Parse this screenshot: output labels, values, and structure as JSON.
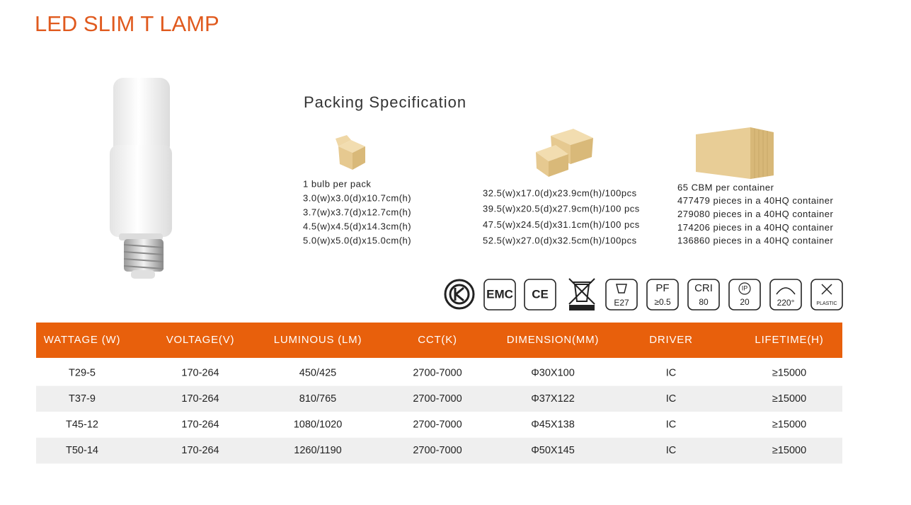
{
  "header": {
    "title": "LED SLIM T LAMP"
  },
  "packing": {
    "title": "Packing Specification",
    "columns": [
      {
        "lines": [
          "1 bulb per pack",
          "3.0(w)x3.0(d)x10.7cm(h)",
          "3.7(w)x3.7(d)x12.7cm(h)",
          "4.5(w)x4.5(d)x14.3cm(h)",
          "5.0(w)x5.0(d)x15.0cm(h)"
        ]
      },
      {
        "lines": [
          "32.5(w)x17.0(d)x23.9cm(h)/100pcs",
          "39.5(w)x20.5(d)x27.9cm(h)/100 pcs",
          "47.5(w)x24.5(d)x31.1cm(h)/100 pcs",
          "52.5(w)x27.0(d)x32.5cm(h)/100pcs"
        ]
      },
      {
        "lines": [
          "65 CBM per container",
          "477479 pieces in a 40HQ container",
          "279080 pieces in a 40HQ container",
          "174206 pieces in a 40HQ container",
          "136860 pieces in a 40HQ container"
        ]
      }
    ]
  },
  "icons": [
    [
      "EMC"
    ],
    [
      "CE"
    ],
    [
      "E27"
    ],
    [
      "PF",
      "≥0.5"
    ],
    [
      "CRI",
      "80"
    ],
    [
      "IP",
      "20"
    ],
    [
      "220°"
    ],
    [
      "PLASTIC"
    ]
  ],
  "table": {
    "header": [
      "WATTAGE (W)",
      "VOLTAGE(V)",
      "LUMINOUS (LM)",
      "CCT(K)",
      "DIMENSION(MM)",
      "DRIVER",
      "LIFETIME(H)"
    ],
    "rows": [
      [
        "T29-5",
        "170-264",
        "450/425",
        "2700-7000",
        "Φ30X100",
        "IC",
        "≥15000"
      ],
      [
        "T37-9",
        "170-264",
        "810/765",
        "2700-7000",
        "Φ37X122",
        "IC",
        "≥15000"
      ],
      [
        "T45-12",
        "170-264",
        "1080/1020",
        "2700-7000",
        "Φ45X138",
        "IC",
        "≥15000"
      ],
      [
        "T50-14",
        "170-264",
        "1260/1190",
        "2700-7000",
        "Φ50X145",
        "IC",
        "≥15000"
      ]
    ]
  }
}
